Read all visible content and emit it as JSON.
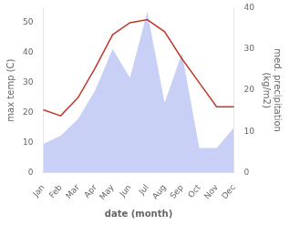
{
  "chart_data": {
    "type": "line",
    "xlabel": "date (month)",
    "ylabel": "max temp (C)",
    "y2label": "med. precipitation\n(kg/m2)",
    "categories": [
      "Jan",
      "Feb",
      "Mar",
      "Apr",
      "May",
      "Jun",
      "Jul",
      "Aug",
      "Sep",
      "Oct",
      "Nov",
      "Dec"
    ],
    "series": [
      {
        "type": "area",
        "color": "#c8d0f5",
        "axis": "y2",
        "values": [
          7,
          9,
          13,
          20,
          30,
          23,
          39,
          17,
          29,
          6,
          6,
          11
        ]
      },
      {
        "type": "line",
        "color": "#c0392b",
        "values": [
          21,
          19,
          25,
          35,
          46,
          50,
          51,
          47,
          38,
          30,
          22,
          22
        ]
      }
    ],
    "ylim": [
      0,
      55
    ],
    "yticks": [
      0,
      10,
      20,
      30,
      40,
      50
    ],
    "y2lim": [
      0,
      40
    ],
    "y2ticks": [
      0,
      10,
      20,
      30,
      40
    ],
    "grid": false
  }
}
